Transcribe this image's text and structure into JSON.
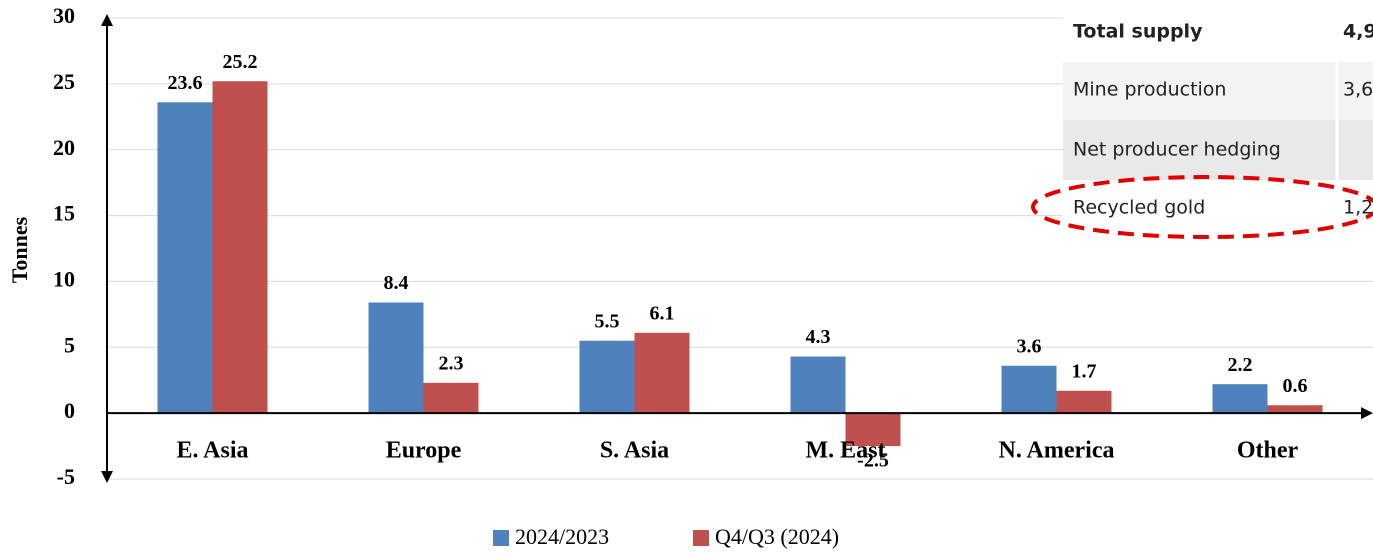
{
  "chart_data": {
    "type": "bar",
    "y_label": "Tonnes",
    "categories": [
      "E. Asia",
      "Europe",
      "S. Asia",
      "M. East",
      "N. America",
      "Other"
    ],
    "series": [
      {
        "name": "2024/2023",
        "color": "#4f81bd",
        "values": [
          23.6,
          8.4,
          5.5,
          4.3,
          3.6,
          2.2
        ]
      },
      {
        "name": "Q4/Q3 (2024)",
        "color": "#c0504d",
        "values": [
          25.2,
          2.3,
          6.1,
          -2.5,
          1.7,
          0.6
        ]
      }
    ],
    "ylim": [
      -5,
      30
    ],
    "yticks": [
      -5,
      0,
      5,
      10,
      15,
      20,
      25,
      30
    ],
    "grid": true
  },
  "table": {
    "rows": [
      [
        "Total supply",
        "4,9"
      ],
      [
        "Mine production",
        "3,6"
      ],
      [
        "Net producer hedging"
      ],
      [
        "Recycled gold",
        "1,2"
      ]
    ]
  }
}
